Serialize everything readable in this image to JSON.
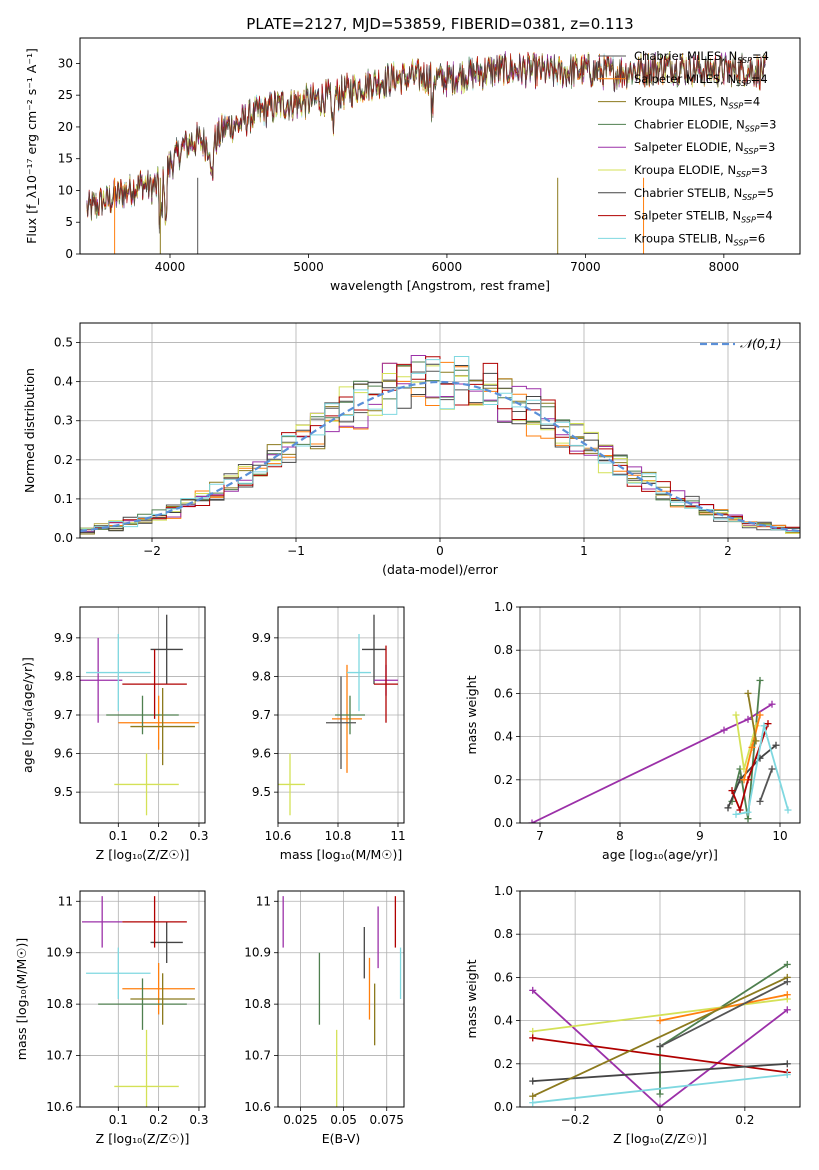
{
  "figure_title": "PLATE=2127, MJD=53859, FIBERID=0381, z=0.113",
  "model_colors": [
    "#555555",
    "#ff7f0e",
    "#8c7a1e",
    "#4f7f4f",
    "#9b30a8",
    "#d4e157",
    "#444444",
    "#b00000",
    "#7fd8e0"
  ],
  "chart_data": [
    {
      "id": "spectrum",
      "type": "line",
      "title": "PLATE=2127, MJD=53859, FIBERID=0381, z=0.113",
      "xlabel": "wavelength [Angstrom, rest frame]",
      "ylabel": "Flux [f_λ10⁻¹⁷ erg cm⁻² s⁻¹ A⁻¹]",
      "xlim": [
        3350,
        8550
      ],
      "ylim": [
        0,
        34
      ],
      "xticks": [
        4000,
        5000,
        6000,
        7000,
        8000
      ],
      "yticks": [
        0,
        5,
        10,
        15,
        20,
        25,
        30
      ],
      "grid": false,
      "legend_position": "top-right",
      "legend": [
        {
          "label": "Chabrier MILES, N",
          "sub": "SSP",
          "suffix": "=4"
        },
        {
          "label": "Salpeter MILES, N",
          "sub": "SSP",
          "suffix": "=4"
        },
        {
          "label": "Kroupa MILES, N",
          "sub": "SSP",
          "suffix": "=4"
        },
        {
          "label": "Chabrier ELODIE, N",
          "sub": "SSP",
          "suffix": "=3"
        },
        {
          "label": "Salpeter ELODIE, N",
          "sub": "SSP",
          "suffix": "=3"
        },
        {
          "label": "Kroupa ELODIE, N",
          "sub": "SSP",
          "suffix": "=3"
        },
        {
          "label": "Chabrier STELIB, N",
          "sub": "SSP",
          "suffix": "=5"
        },
        {
          "label": "Salpeter STELIB, N",
          "sub": "SSP",
          "suffix": "=4"
        },
        {
          "label": "Kroupa STELIB, N",
          "sub": "SSP",
          "suffix": "=6"
        }
      ],
      "continuum": {
        "x": [
          3400,
          3500,
          3600,
          3700,
          3800,
          3900,
          4000,
          4100,
          4200,
          4300,
          4400,
          4500,
          4600,
          4800,
          5000,
          5200,
          5400,
          5600,
          5800,
          6000,
          6200,
          6400,
          6600,
          6800,
          7000,
          7200,
          7400,
          7600,
          7800,
          8000,
          8200,
          8300
        ],
        "y": [
          7,
          8,
          9,
          10,
          11,
          10.5,
          14,
          17,
          18,
          17,
          20,
          20.5,
          22,
          23.5,
          24,
          25,
          26.5,
          27.5,
          28,
          27.5,
          28.5,
          29,
          29,
          28.5,
          29,
          28.5,
          29,
          29.5,
          29,
          29,
          29,
          28.5
        ]
      }
    },
    {
      "id": "residuals",
      "type": "histogram",
      "xlabel": "(data-model)/error",
      "ylabel": "Normed distribution",
      "xlim": [
        -2.5,
        2.5
      ],
      "ylim": [
        0,
        0.55
      ],
      "xticks": [
        -2,
        -1,
        0,
        1,
        2
      ],
      "yticks": [
        0.0,
        0.1,
        0.2,
        0.3,
        0.4,
        0.5
      ],
      "grid": true,
      "legend_position": "top-right",
      "gaussian_legend": "𝒩(0,1)",
      "bin_width": 0.1
    },
    {
      "id": "age-vs-Z",
      "type": "scatter-errorbar",
      "xlabel": "Z [log₁₀(Z/Z☉)]",
      "ylabel": "age  [log₁₀(age/yr)]",
      "xlim": [
        0.005,
        0.315
      ],
      "ylim": [
        9.42,
        9.98
      ],
      "xticks": [
        0.1,
        0.2,
        0.3
      ],
      "yticks": [
        9.5,
        9.6,
        9.7,
        9.8,
        9.9
      ],
      "grid": true,
      "points": [
        {
          "x": 0.22,
          "y": 9.87,
          "xerr": 0.04,
          "yerr": 0.09,
          "c": 6
        },
        {
          "x": 0.05,
          "y": 9.79,
          "xerr": 0.06,
          "yerr": 0.11,
          "c": 4
        },
        {
          "x": 0.2,
          "y": 9.68,
          "xerr": 0.1,
          "yerr": 0.07,
          "c": 1
        },
        {
          "x": 0.17,
          "y": 9.52,
          "xerr": 0.08,
          "yerr": 0.08,
          "c": 5
        },
        {
          "x": 0.16,
          "y": 9.7,
          "xerr": 0.09,
          "yerr": 0.05,
          "c": 3
        },
        {
          "x": 0.19,
          "y": 9.78,
          "xerr": 0.08,
          "yerr": 0.09,
          "c": 7
        },
        {
          "x": 0.1,
          "y": 9.81,
          "xerr": 0.08,
          "yerr": 0.1,
          "c": 8
        },
        {
          "x": 0.21,
          "y": 9.67,
          "xerr": 0.08,
          "yerr": 0.1,
          "c": 2
        }
      ]
    },
    {
      "id": "age-vs-mass",
      "type": "scatter-errorbar",
      "xlabel": "mass [log₁₀(M/M☉)]",
      "ylabel": "",
      "xlim": [
        10.6,
        11.02
      ],
      "ylim": [
        9.42,
        9.98
      ],
      "xticks": [
        10.6,
        10.8,
        11.0
      ],
      "yticks": [
        9.5,
        9.6,
        9.7,
        9.8,
        9.9
      ],
      "grid": true,
      "points": [
        {
          "x": 10.92,
          "y": 9.87,
          "xerr": 0.04,
          "yerr": 0.09,
          "c": 6
        },
        {
          "x": 10.96,
          "y": 9.79,
          "xerr": 0.04,
          "yerr": 0.04,
          "c": 4
        },
        {
          "x": 10.83,
          "y": 9.69,
          "xerr": 0.05,
          "yerr": 0.14,
          "c": 1
        },
        {
          "x": 10.64,
          "y": 9.52,
          "xerr": 0.05,
          "yerr": 0.08,
          "c": 5
        },
        {
          "x": 10.84,
          "y": 9.7,
          "xerr": 0.05,
          "yerr": 0.05,
          "c": 3
        },
        {
          "x": 10.96,
          "y": 9.78,
          "xerr": 0.04,
          "yerr": 0.1,
          "c": 7
        },
        {
          "x": 10.87,
          "y": 9.81,
          "xerr": 0.04,
          "yerr": 0.1,
          "c": 8
        },
        {
          "x": 10.81,
          "y": 9.68,
          "xerr": 0.05,
          "yerr": 0.12,
          "c": 0
        }
      ]
    },
    {
      "id": "weight-vs-age",
      "type": "line",
      "xlabel": "age  [log₁₀(age/yr)]",
      "ylabel": "mass weight",
      "xlim": [
        6.75,
        10.25
      ],
      "ylim": [
        0,
        1
      ],
      "xticks": [
        7,
        8,
        9,
        10
      ],
      "yticks": [
        0.0,
        0.2,
        0.4,
        0.6,
        0.8,
        1.0
      ],
      "grid": true,
      "series": [
        {
          "c": 4,
          "x": [
            6.9,
            9.3,
            9.6,
            9.9
          ],
          "y": [
            0.0,
            0.43,
            0.48,
            0.55
          ]
        },
        {
          "c": 3,
          "x": [
            9.4,
            9.5,
            9.6,
            9.75
          ],
          "y": [
            0.1,
            0.25,
            0.02,
            0.66
          ]
        },
        {
          "c": 6,
          "x": [
            9.35,
            9.5,
            9.75,
            9.95
          ],
          "y": [
            0.07,
            0.2,
            0.3,
            0.36
          ]
        },
        {
          "c": 7,
          "x": [
            9.4,
            9.5,
            9.6,
            9.85
          ],
          "y": [
            0.15,
            0.06,
            0.2,
            0.46
          ]
        },
        {
          "c": 8,
          "x": [
            9.45,
            9.6,
            9.8,
            10.1
          ],
          "y": [
            0.04,
            0.05,
            0.45,
            0.06
          ]
        },
        {
          "c": 5,
          "x": [
            9.45,
            9.55,
            9.7
          ],
          "y": [
            0.5,
            0.25,
            0.45
          ]
        },
        {
          "c": 1,
          "x": [
            9.55,
            9.65,
            9.75
          ],
          "y": [
            0.2,
            0.35,
            0.5
          ]
        },
        {
          "c": 2,
          "x": [
            9.6,
            9.7
          ],
          "y": [
            0.6,
            0.38
          ]
        },
        {
          "c": 0,
          "x": [
            9.75,
            9.9
          ],
          "y": [
            0.1,
            0.25
          ]
        }
      ]
    },
    {
      "id": "mass-vs-Z",
      "type": "scatter-errorbar",
      "xlabel": "Z [log₁₀(Z/Z☉)]",
      "ylabel": "mass [log₁₀(M/M☉)]",
      "xlim": [
        0.005,
        0.315
      ],
      "ylim": [
        10.6,
        11.02
      ],
      "xticks": [
        0.1,
        0.2,
        0.3
      ],
      "yticks": [
        10.6,
        10.7,
        10.8,
        10.9,
        11.0
      ],
      "grid": true,
      "points": [
        {
          "x": 0.22,
          "y": 10.92,
          "xerr": 0.04,
          "yerr": 0.04,
          "c": 6
        },
        {
          "x": 0.06,
          "y": 10.96,
          "xerr": 0.05,
          "yerr": 0.05,
          "c": 4
        },
        {
          "x": 0.2,
          "y": 10.83,
          "xerr": 0.09,
          "yerr": 0.05,
          "c": 1
        },
        {
          "x": 0.17,
          "y": 10.64,
          "xerr": 0.08,
          "yerr": 0.11,
          "c": 5
        },
        {
          "x": 0.16,
          "y": 10.8,
          "xerr": 0.11,
          "yerr": 0.05,
          "c": 3
        },
        {
          "x": 0.19,
          "y": 10.96,
          "xerr": 0.08,
          "yerr": 0.05,
          "c": 7
        },
        {
          "x": 0.1,
          "y": 10.86,
          "xerr": 0.08,
          "yerr": 0.05,
          "c": 8
        },
        {
          "x": 0.21,
          "y": 10.81,
          "xerr": 0.08,
          "yerr": 0.05,
          "c": 2
        }
      ]
    },
    {
      "id": "mass-vs-ebv",
      "type": "errorbar",
      "xlabel": "E(B-V)",
      "ylabel": "",
      "xlim": [
        0.012,
        0.085
      ],
      "ylim": [
        10.6,
        11.02
      ],
      "xticks": [
        0.025,
        0.05,
        0.075
      ],
      "yticks": [
        10.6,
        10.7,
        10.8,
        10.9,
        11.0
      ],
      "grid": true,
      "points": [
        {
          "x": 0.015,
          "y": 10.96,
          "yerr": 0.05,
          "c": 4
        },
        {
          "x": 0.036,
          "y": 10.83,
          "yerr": 0.07,
          "c": 3
        },
        {
          "x": 0.046,
          "y": 10.67,
          "yerr": 0.08,
          "c": 5
        },
        {
          "x": 0.062,
          "y": 10.9,
          "yerr": 0.05,
          "c": 6
        },
        {
          "x": 0.065,
          "y": 10.83,
          "yerr": 0.06,
          "c": 1
        },
        {
          "x": 0.068,
          "y": 10.78,
          "yerr": 0.06,
          "c": 2
        },
        {
          "x": 0.07,
          "y": 10.93,
          "yerr": 0.06,
          "c": 4
        },
        {
          "x": 0.08,
          "y": 10.96,
          "yerr": 0.05,
          "c": 7
        },
        {
          "x": 0.083,
          "y": 10.86,
          "yerr": 0.05,
          "c": 8
        }
      ]
    },
    {
      "id": "weight-vs-Z",
      "type": "line",
      "xlabel": "Z [log₁₀(Z/Z☉)]",
      "ylabel": "mass weight",
      "xlim": [
        -0.33,
        0.33
      ],
      "ylim": [
        0,
        1
      ],
      "xticks": [
        -0.2,
        0.0,
        0.2
      ],
      "yticks": [
        0.0,
        0.2,
        0.4,
        0.6,
        0.8,
        1.0
      ],
      "grid": true,
      "series": [
        {
          "c": 4,
          "x": [
            -0.3,
            0.0,
            0.3
          ],
          "y": [
            0.54,
            0.0,
            0.45
          ]
        },
        {
          "c": 3,
          "x": [
            0.0,
            0.0,
            0.3
          ],
          "y": [
            0.06,
            0.28,
            0.66
          ]
        },
        {
          "c": 5,
          "x": [
            -0.3,
            0.3
          ],
          "y": [
            0.35,
            0.5
          ]
        },
        {
          "c": 7,
          "x": [
            -0.3,
            0.3
          ],
          "y": [
            0.32,
            0.16
          ]
        },
        {
          "c": 6,
          "x": [
            -0.3,
            0.3
          ],
          "y": [
            0.12,
            0.2
          ]
        },
        {
          "c": 8,
          "x": [
            -0.3,
            0.3
          ],
          "y": [
            0.02,
            0.15
          ]
        },
        {
          "c": 1,
          "x": [
            0.0,
            0.3
          ],
          "y": [
            0.4,
            0.52
          ]
        },
        {
          "c": 2,
          "x": [
            -0.3,
            0.3
          ],
          "y": [
            0.05,
            0.6
          ]
        },
        {
          "c": 0,
          "x": [
            0.0,
            0.3
          ],
          "y": [
            0.28,
            0.58
          ]
        }
      ]
    }
  ]
}
